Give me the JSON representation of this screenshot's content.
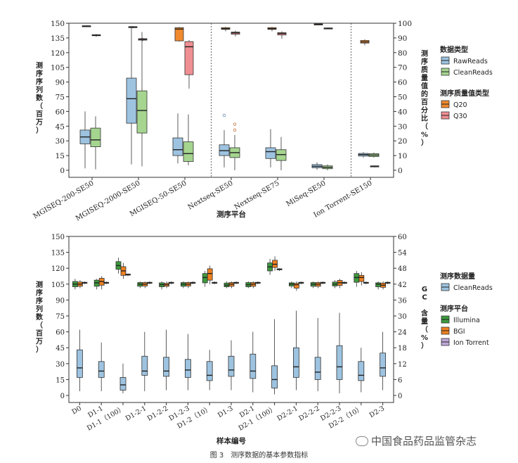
{
  "figure_caption": "图 3　测序数据的基本参数指标",
  "watermark": "中国食品药品监管杂志",
  "colors": {
    "blue": "#9dc3e0",
    "green": "#a5d58f",
    "orange": "#f08a2d",
    "pink": "#f08f93",
    "dgreen": "#3d9a3d",
    "borange": "#ee8020",
    "purple": "#bfa7d9"
  },
  "chart_data": [
    {
      "type": "boxplot",
      "ylabel_left": "测序序列数（百万）",
      "ylabel_right": "测序质量值的百分比（%）",
      "xlabel": "测序平台",
      "left_axis": {
        "min": 0,
        "max": 150,
        "ticks": [
          0,
          15,
          30,
          45,
          60,
          75,
          90,
          105,
          120,
          135,
          150
        ]
      },
      "right_axis": {
        "min": 0,
        "max": 100,
        "ticks": [
          0,
          10,
          20,
          30,
          40,
          50,
          60,
          70,
          80,
          90,
          100
        ]
      },
      "categories": [
        "MGISEQ-200-SE50",
        "MGISEQ-2000-SE50",
        "MGISEQ-50-SE50",
        "Nextseq-SE50",
        "Nextseq-SE75",
        "MiSeq-SE50",
        "Ion Torrent-SE150"
      ],
      "legend": [
        {
          "title": "数据类型",
          "items": [
            {
              "label": "RawReads",
              "color": "blue"
            },
            {
              "label": "CleanReads",
              "color": "green"
            }
          ]
        },
        {
          "title": "测序质量值类型",
          "items": [
            {
              "label": "Q20",
              "color": "orange"
            },
            {
              "label": "Q30",
              "color": "pink"
            }
          ]
        }
      ],
      "series": [
        {
          "name": "RawReads",
          "axis": "left",
          "color": "blue",
          "boxes": [
            [
              2,
              27,
              34,
              41,
              60
            ],
            [
              6,
              48,
              73,
              94,
              147
            ],
            [
              7,
              15,
              21,
              33,
              58
            ],
            [
              3,
              15,
              20,
              26,
              41
            ],
            [
              3,
              12,
              19,
              23,
              42
            ],
            [
              0.5,
              2.6,
              4,
              5.8,
              8
            ],
            [
              13,
              14.5,
              16,
              17.2,
              18.5
            ]
          ],
          "outliers": [
            [],
            [],
            [],
            [
              56
            ],
            [],
            [],
            []
          ]
        },
        {
          "name": "CleanReads",
          "axis": "left",
          "color": "green",
          "boxes": [
            [
              1,
              24,
              31,
              43,
              55
            ],
            [
              4,
              38,
              61,
              81,
              141
            ],
            [
              5,
              9,
              17,
              29,
              57
            ],
            [
              0,
              13,
              18,
              23,
              36
            ],
            [
              0,
              10,
              16,
              21,
              34
            ],
            [
              0,
              1.6,
              3,
              4.5,
              6
            ],
            [
              13,
              14,
              15.5,
              17,
              18
            ]
          ],
          "outliers": [
            [],
            [],
            [],
            [
              41,
              47
            ],
            [],
            [],
            []
          ]
        },
        {
          "name": "Q20",
          "axis": "right",
          "color": "orange",
          "boxes": [
            [
              97.5,
              97.8,
              98,
              98.3,
              98.6
            ],
            [
              96.6,
              97,
              97.3,
              97.7,
              98
            ],
            [
              87.5,
              88,
              96,
              97,
              97.5
            ],
            [
              94.5,
              95.8,
              96.3,
              97,
              97.5
            ],
            [
              94.5,
              95.8,
              96.3,
              97,
              97.5
            ],
            [
              99,
              99.1,
              99.3,
              99.5,
              99.6
            ],
            [
              85,
              86.5,
              87.3,
              88.3,
              89
            ]
          ],
          "outliers": [
            [],
            [],
            [],
            [],
            [],
            [],
            []
          ]
        },
        {
          "name": "Q30",
          "axis": "right",
          "color": "pink",
          "boxes": [
            [
              90.8,
              91.5,
              91.8,
              92.2,
              92.6
            ],
            [
              87.8,
              88.5,
              89,
              89.5,
              90
            ],
            [
              55.5,
              65,
              84,
              87.5,
              88.5
            ],
            [
              91,
              92.5,
              93.4,
              94,
              95
            ],
            [
              89.5,
              92,
              93,
              93.6,
              94.5
            ],
            [
              96.1,
              96.3,
              96.5,
              96.8,
              97
            ],
            [
              2,
              2.5,
              2.8,
              3,
              3.3
            ]
          ],
          "outliers": [
            [],
            [],
            [],
            [],
            [],
            [],
            []
          ]
        }
      ]
    },
    {
      "type": "boxplot",
      "ylabel_left": "测序序列数（百万）",
      "ylabel_right": "GC 含量（%）",
      "xlabel": "样本编号",
      "left_axis": {
        "min": 0,
        "max": 150,
        "ticks": [
          0,
          15,
          30,
          45,
          60,
          75,
          90,
          105,
          120,
          135,
          150
        ]
      },
      "right_axis": {
        "min": 0,
        "max": 60,
        "ticks": [
          0,
          6,
          12,
          18,
          24,
          30,
          36,
          42,
          48,
          54,
          60
        ]
      },
      "categories": [
        "D0",
        "D1-1",
        "D1-1（100）",
        "D1-2-1",
        "D1-2-2",
        "D1-2-3",
        "D1-2（10）",
        "D1-3",
        "D2-1",
        "D2-1（100）",
        "D2-2-1",
        "D2-2-2",
        "D2-2-3",
        "D2-2（10）",
        "D2-3"
      ],
      "legend": [
        {
          "title": "测序数据量",
          "items": [
            {
              "label": "CleanReads",
              "color": "blue"
            }
          ]
        },
        {
          "title": "测序平台",
          "items": [
            {
              "label": "Illumina",
              "color": "dgreen"
            },
            {
              "label": "BGI",
              "color": "borange"
            },
            {
              "label": "Ion Torrent",
              "color": "purple"
            }
          ]
        }
      ],
      "series": [
        {
          "name": "CleanReads",
          "axis": "left",
          "color": "blue",
          "boxes": [
            [
              4,
              17,
              26,
              43,
              62
            ],
            [
              4,
              17,
              23,
              32,
              50
            ],
            [
              2,
              5,
              10,
              17,
              30
            ],
            [
              4,
              19,
              23,
              37,
              60
            ],
            [
              5,
              18,
              23,
              36,
              62
            ],
            [
              5,
              17,
              24,
              34,
              58
            ],
            [
              5,
              14,
              19,
              32,
              43
            ],
            [
              5,
              18,
              24,
              37,
              52
            ],
            [
              3,
              16,
              23,
              39,
              60
            ],
            [
              1,
              7,
              15,
              28,
              72
            ],
            [
              5,
              17,
              27,
              45,
              80
            ],
            [
              4,
              15,
              22,
              36,
              73
            ],
            [
              2,
              15,
              27,
              47,
              78
            ],
            [
              3,
              14,
              19,
              32,
              45
            ],
            [
              5,
              18,
              26,
              40,
              60
            ]
          ],
          "outliers": [
            [],
            [],
            [],
            [],
            [],
            [],
            [],
            [],
            [],
            [],
            [],
            [],
            [],
            [],
            []
          ]
        },
        {
          "name": "Illumina",
          "axis": "right",
          "color": "dgreen",
          "boxes": [
            [
              40,
              41,
              42,
              43,
              44
            ],
            [
              40,
              41.2,
              42.5,
              43.5,
              44
            ],
            [
              46,
              47.6,
              49,
              50.5,
              52
            ],
            [
              40.5,
              41.2,
              42,
              42.6,
              43
            ],
            [
              40,
              41,
              41.8,
              42.5,
              43
            ],
            [
              40.5,
              41.2,
              42,
              42.6,
              43
            ],
            [
              41,
              42.5,
              44.5,
              46,
              47
            ],
            [
              40.5,
              41,
              41.6,
              42.4,
              43
            ],
            [
              40.5,
              41,
              41.8,
              42.6,
              43
            ],
            [
              45.5,
              47,
              48.5,
              50,
              51.5
            ],
            [
              40.5,
              41.3,
              42,
              42.5,
              43
            ],
            [
              40.5,
              41.2,
              42,
              42.6,
              43
            ],
            [
              40.5,
              41.3,
              42,
              42.8,
              43.5
            ],
            [
              41,
              42.7,
              44.5,
              46,
              47
            ],
            [
              40,
              41,
              42,
              42.5,
              43
            ]
          ],
          "outliers": [
            [],
            [],
            [],
            [],
            [],
            [],
            [],
            [],
            [],
            [],
            [],
            [],
            [],
            [],
            []
          ]
        },
        {
          "name": "BGI",
          "axis": "right",
          "color": "borange",
          "boxes": [
            [
              40.5,
              41.2,
              42,
              42.8,
              43.5
            ],
            [
              40,
              41.6,
              43,
              44.2,
              45
            ],
            [
              44,
              45.3,
              47,
              48.6,
              50
            ],
            [
              40.5,
              41.3,
              42,
              42.6,
              43
            ],
            [
              40.5,
              41.2,
              41.8,
              42.3,
              43
            ],
            [
              40.5,
              41.3,
              42,
              42.6,
              43
            ],
            [
              42,
              43.5,
              46,
              47.8,
              49
            ],
            [
              40.5,
              41.2,
              42,
              42.6,
              43
            ],
            [
              40.5,
              41.2,
              42,
              42.6,
              43
            ],
            [
              47,
              48.3,
              49.5,
              51,
              52.5
            ],
            [
              39.5,
              40.5,
              41.8,
              42.3,
              43
            ],
            [
              40.5,
              41.2,
              42,
              42.6,
              43
            ],
            [
              40.5,
              41.5,
              42.5,
              43.4,
              44
            ],
            [
              41.5,
              43,
              44.5,
              45.3,
              46.5
            ],
            [
              40,
              40.8,
              41.6,
              42.4,
              43
            ]
          ],
          "outliers": [
            [],
            [],
            [],
            [],
            [],
            [],
            [],
            [],
            [],
            [],
            [],
            [],
            [],
            [],
            []
          ]
        },
        {
          "name": "Ion Torrent",
          "axis": "right",
          "color": "purple",
          "boxes": [
            [
              42,
              42.3,
              42.5,
              42.7,
              43
            ],
            [
              42,
              42.3,
              42.5,
              42.7,
              43
            ],
            [
              45,
              45.4,
              45.6,
              45.8,
              46
            ],
            [
              42,
              42.3,
              42.5,
              42.7,
              43
            ],
            [
              42,
              42.3,
              42.5,
              42.7,
              43
            ],
            [
              42,
              42.3,
              42.5,
              42.7,
              43
            ],
            [
              42,
              42.3,
              42.5,
              42.7,
              43
            ],
            [
              42,
              42.3,
              42.5,
              42.7,
              43
            ],
            [
              42,
              42.3,
              42.5,
              42.7,
              43
            ],
            [
              47,
              47.4,
              47.6,
              47.8,
              48
            ],
            [
              42,
              42.3,
              42.5,
              42.7,
              43
            ],
            [
              42,
              42.3,
              42.5,
              42.7,
              43
            ],
            [
              42,
              42.3,
              42.5,
              42.7,
              43
            ],
            [
              42,
              42.3,
              42.5,
              42.7,
              43
            ],
            [
              42,
              42.3,
              42.5,
              42.7,
              43
            ]
          ],
          "outliers": [
            [],
            [],
            [],
            [],
            [],
            [],
            [],
            [],
            [],
            [],
            [],
            [],
            [],
            [],
            []
          ]
        }
      ]
    }
  ]
}
